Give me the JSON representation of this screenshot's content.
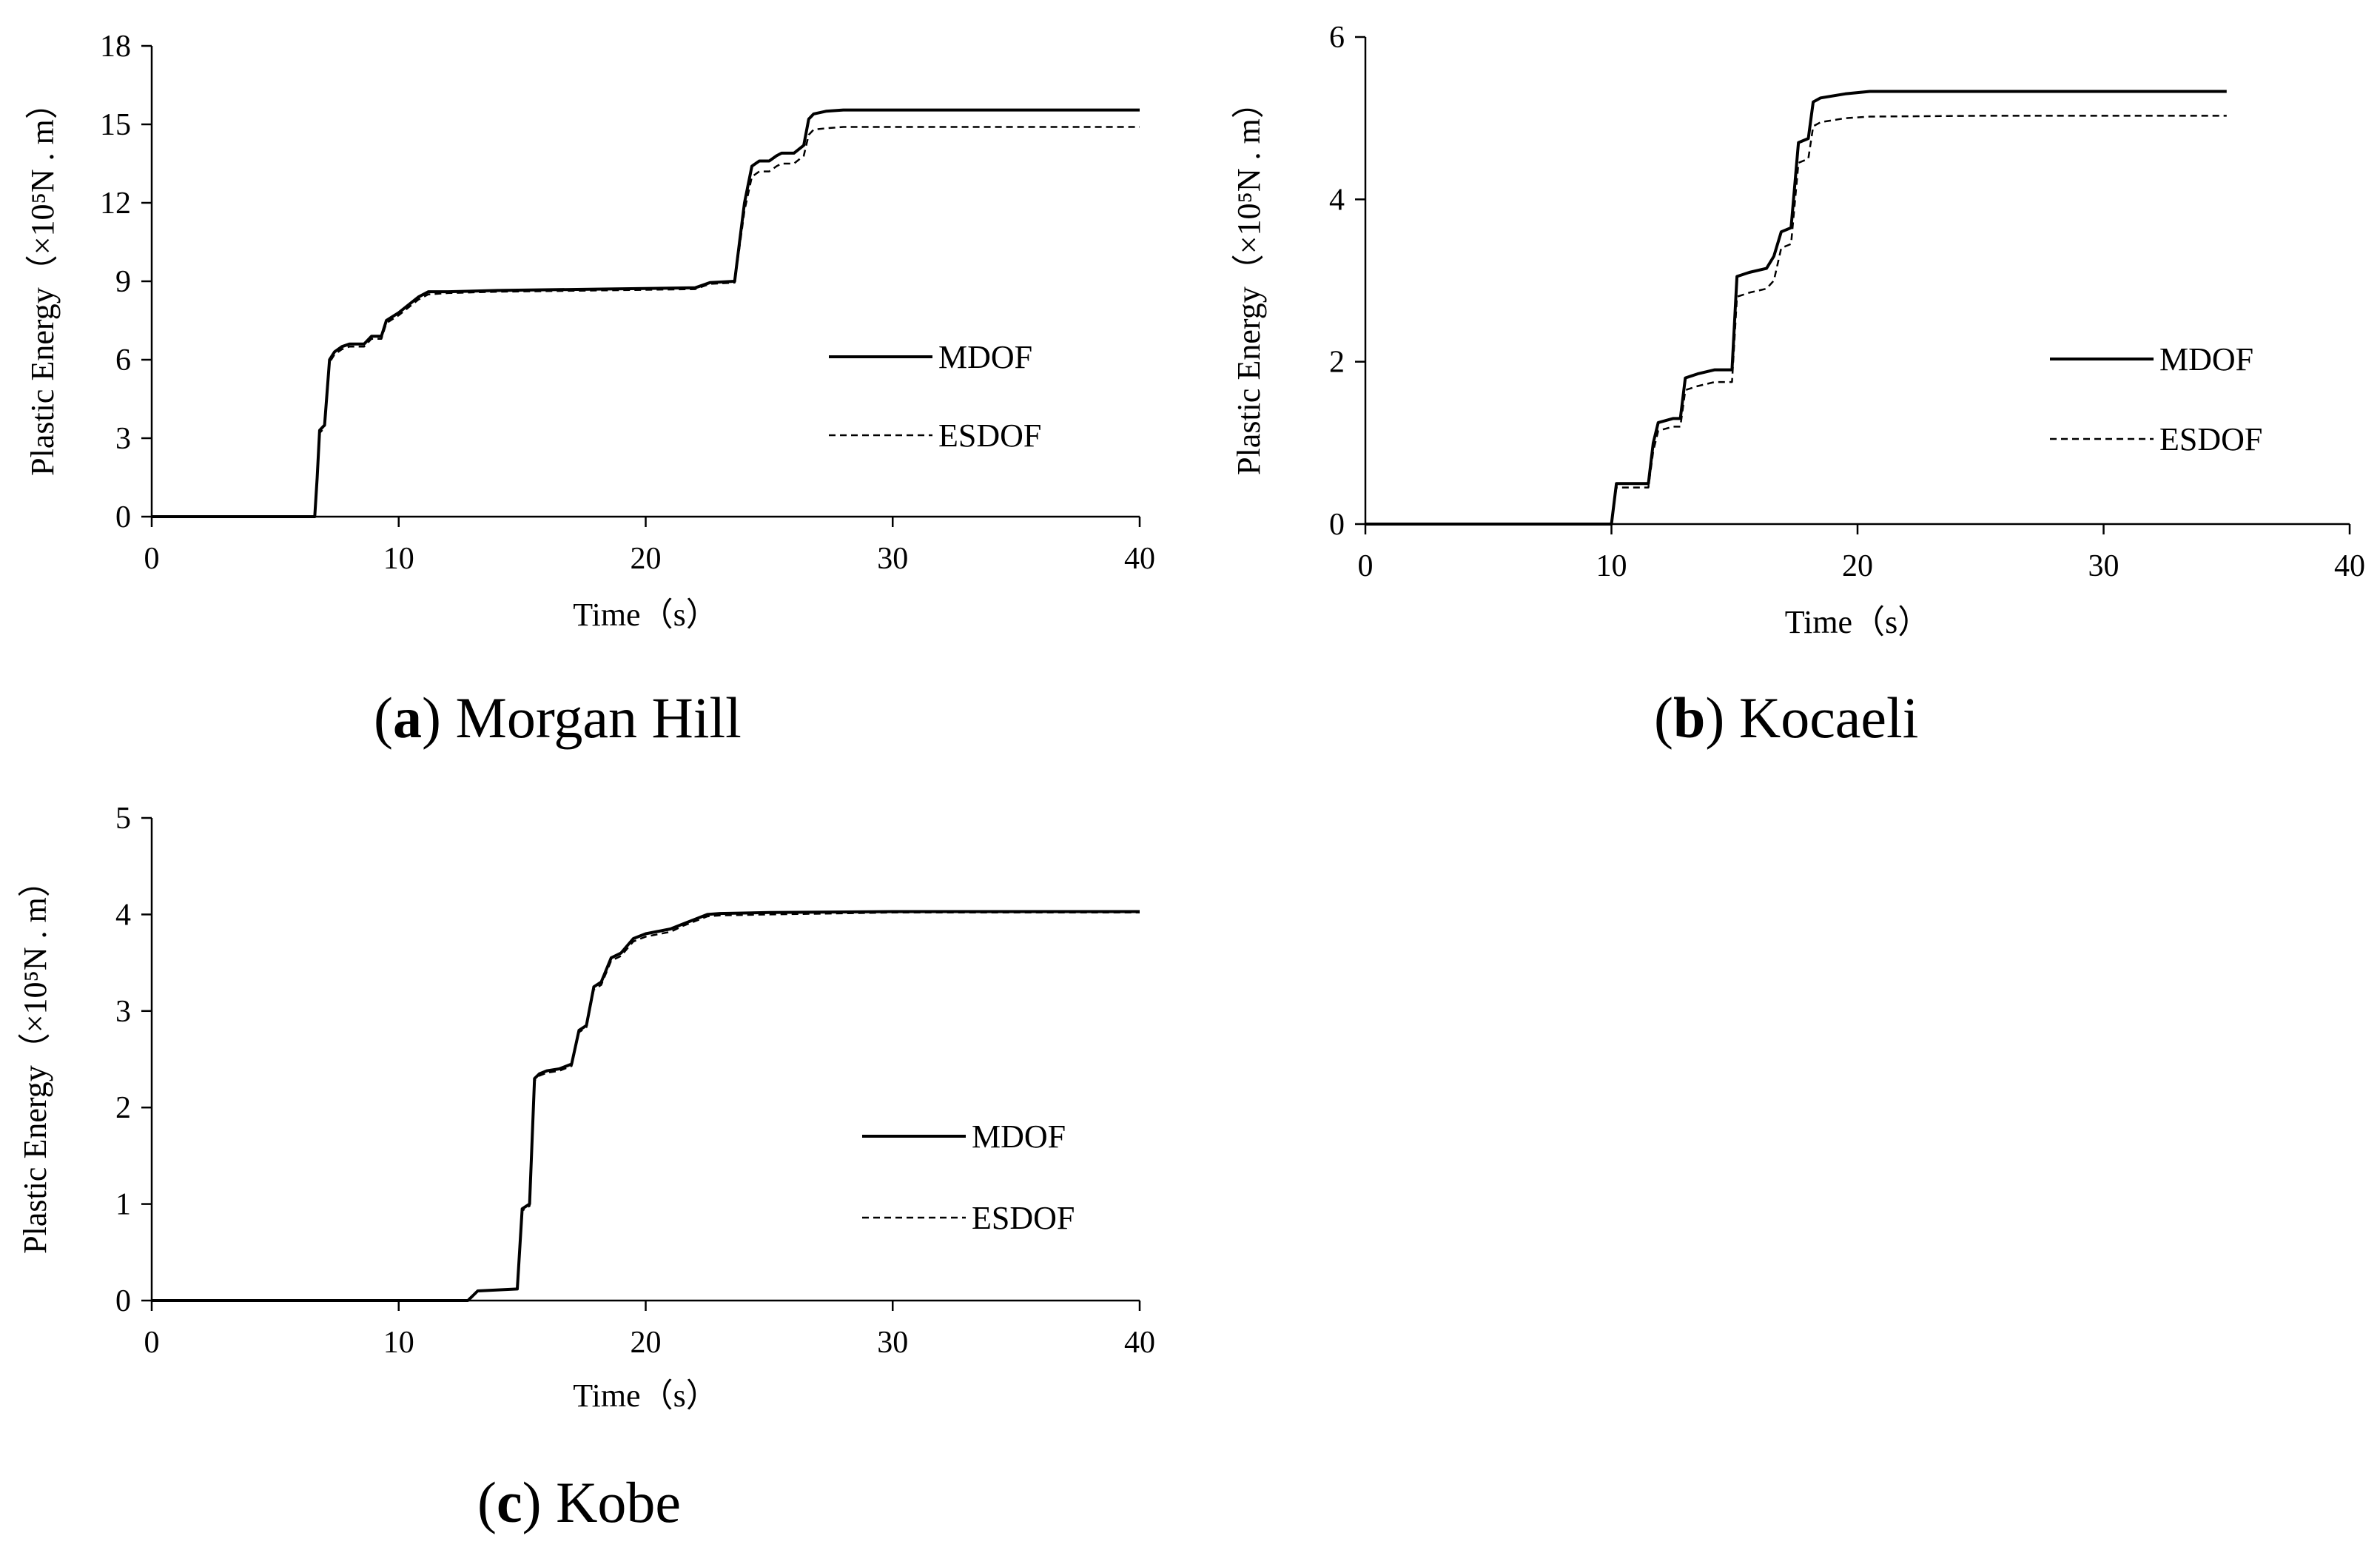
{
  "chart_data": [
    {
      "type": "line",
      "caption_letter": "a",
      "caption_text": "Morgan Hill",
      "xlabel": "Time（s）",
      "ylabel": "Plastic Energy（×10⁵N . m）",
      "xlim": [
        0,
        40
      ],
      "ylim": [
        0,
        18
      ],
      "xticks": [
        0,
        10,
        20,
        30,
        40
      ],
      "yticks": [
        0,
        3,
        6,
        9,
        12,
        15,
        18
      ],
      "grid": false,
      "legend": "right",
      "series": [
        {
          "name": "MDOF",
          "style": "solid",
          "x": [
            0,
            6.6,
            6.7,
            6.8,
            7.0,
            7.2,
            7.4,
            7.7,
            8.0,
            8.6,
            8.9,
            9.3,
            9.5,
            10.0,
            10.4,
            10.8,
            11.2,
            12,
            14,
            18,
            22,
            22.6,
            23.6,
            23.8,
            24.0,
            24.3,
            24.6,
            25.0,
            25.3,
            25.5,
            26.0,
            26.4,
            26.6,
            26.8,
            27.3,
            28,
            30,
            35,
            40
          ],
          "y": [
            0,
            0,
            1.5,
            3.3,
            3.5,
            6.0,
            6.3,
            6.5,
            6.6,
            6.6,
            6.9,
            6.9,
            7.5,
            7.8,
            8.1,
            8.4,
            8.6,
            8.6,
            8.65,
            8.7,
            8.75,
            8.95,
            9.0,
            10.5,
            12.0,
            13.4,
            13.6,
            13.6,
            13.8,
            13.9,
            13.9,
            14.2,
            15.2,
            15.4,
            15.5,
            15.55,
            15.55,
            15.55,
            15.55
          ]
        },
        {
          "name": "ESDOF",
          "style": "dashed",
          "x": [
            0,
            6.6,
            6.7,
            6.8,
            7.0,
            7.2,
            7.4,
            7.7,
            8.0,
            8.6,
            8.9,
            9.3,
            9.5,
            10.0,
            10.4,
            10.8,
            11.2,
            12,
            14,
            18,
            22,
            22.6,
            23.6,
            23.8,
            24.0,
            24.3,
            24.6,
            25.0,
            25.3,
            25.5,
            26.0,
            26.4,
            26.6,
            26.8,
            27.3,
            28,
            30,
            35,
            40
          ],
          "y": [
            0,
            0,
            1.4,
            3.2,
            3.4,
            5.9,
            6.2,
            6.4,
            6.5,
            6.5,
            6.8,
            6.8,
            7.4,
            7.7,
            8.0,
            8.3,
            8.5,
            8.55,
            8.6,
            8.65,
            8.7,
            8.9,
            8.95,
            10.3,
            11.7,
            13.0,
            13.2,
            13.2,
            13.4,
            13.5,
            13.5,
            13.8,
            14.6,
            14.8,
            14.85,
            14.9,
            14.9,
            14.9,
            14.9
          ]
        }
      ]
    },
    {
      "type": "line",
      "caption_letter": "b",
      "caption_text": "Kocaeli",
      "xlabel": "Time（s）",
      "ylabel": "Plastic Energy（×10⁵N . m）",
      "xlim": [
        0,
        40
      ],
      "ylim": [
        0,
        6
      ],
      "xticks": [
        0,
        10,
        20,
        30,
        40
      ],
      "yticks": [
        0,
        2,
        4,
        6
      ],
      "grid": false,
      "legend": "right",
      "series": [
        {
          "name": "MDOF",
          "style": "solid",
          "x": [
            0,
            10.0,
            10.2,
            10.4,
            11.5,
            11.7,
            11.9,
            12.5,
            12.8,
            13.0,
            13.5,
            14.2,
            14.9,
            15.1,
            15.6,
            16.3,
            16.6,
            16.9,
            17.3,
            17.6,
            18.0,
            18.2,
            18.5,
            19.5,
            20.5,
            25,
            30,
            35
          ],
          "y": [
            0,
            0,
            0.5,
            0.5,
            0.5,
            1.0,
            1.25,
            1.3,
            1.3,
            1.8,
            1.85,
            1.9,
            1.9,
            3.05,
            3.1,
            3.15,
            3.3,
            3.6,
            3.65,
            4.7,
            4.75,
            5.2,
            5.25,
            5.3,
            5.33,
            5.33,
            5.33,
            5.33
          ]
        },
        {
          "name": "ESDOF",
          "style": "dashed",
          "x": [
            0,
            10.0,
            10.2,
            10.4,
            11.5,
            11.7,
            11.9,
            12.5,
            12.8,
            13.0,
            13.5,
            14.2,
            14.9,
            15.1,
            15.6,
            16.3,
            16.6,
            16.9,
            17.3,
            17.6,
            18.0,
            18.2,
            18.5,
            19.5,
            20.5,
            25,
            30,
            35
          ],
          "y": [
            0,
            0,
            0.45,
            0.45,
            0.45,
            0.9,
            1.15,
            1.2,
            1.2,
            1.65,
            1.7,
            1.75,
            1.75,
            2.8,
            2.85,
            2.9,
            3.0,
            3.4,
            3.45,
            4.45,
            4.5,
            4.9,
            4.95,
            5.0,
            5.02,
            5.03,
            5.03,
            5.03
          ]
        }
      ]
    },
    {
      "type": "line",
      "caption_letter": "c",
      "caption_text": "Kobe",
      "xlabel": "Time（s）",
      "ylabel": "Plastic Energy（×10⁵N . m）",
      "xlim": [
        0,
        40
      ],
      "ylim": [
        0,
        5
      ],
      "xticks": [
        0,
        10,
        20,
        30,
        40
      ],
      "yticks": [
        0,
        1,
        2,
        3,
        4,
        5
      ],
      "grid": false,
      "legend": "right",
      "series": [
        {
          "name": "MDOF",
          "style": "solid",
          "x": [
            0,
            12.8,
            13.0,
            13.2,
            14.8,
            15.0,
            15.3,
            15.5,
            15.7,
            16.0,
            16.5,
            17.0,
            17.3,
            17.6,
            17.9,
            18.2,
            18.6,
            19.0,
            19.5,
            20,
            21,
            21.5,
            22,
            22.5,
            23,
            25,
            30,
            35,
            40
          ],
          "y": [
            0,
            0,
            0.05,
            0.1,
            0.12,
            0.95,
            1.0,
            2.3,
            2.35,
            2.38,
            2.4,
            2.45,
            2.8,
            2.85,
            3.25,
            3.3,
            3.55,
            3.6,
            3.75,
            3.8,
            3.85,
            3.9,
            3.95,
            4.0,
            4.01,
            4.02,
            4.03,
            4.03,
            4.03
          ]
        },
        {
          "name": "ESDOF",
          "style": "dashed",
          "x": [
            0,
            12.8,
            13.0,
            13.2,
            14.8,
            15.0,
            15.3,
            15.5,
            15.7,
            16.0,
            16.5,
            17.0,
            17.3,
            17.6,
            17.9,
            18.2,
            18.6,
            19.0,
            19.5,
            20,
            21,
            21.5,
            22,
            22.5,
            23,
            25,
            30,
            35,
            40
          ],
          "y": [
            0,
            0,
            0.05,
            0.1,
            0.12,
            0.93,
            0.98,
            2.28,
            2.33,
            2.36,
            2.38,
            2.43,
            2.78,
            2.83,
            3.22,
            3.27,
            3.52,
            3.57,
            3.72,
            3.77,
            3.82,
            3.88,
            3.93,
            3.98,
            3.99,
            4.0,
            4.02,
            4.02,
            4.02
          ]
        }
      ]
    }
  ]
}
